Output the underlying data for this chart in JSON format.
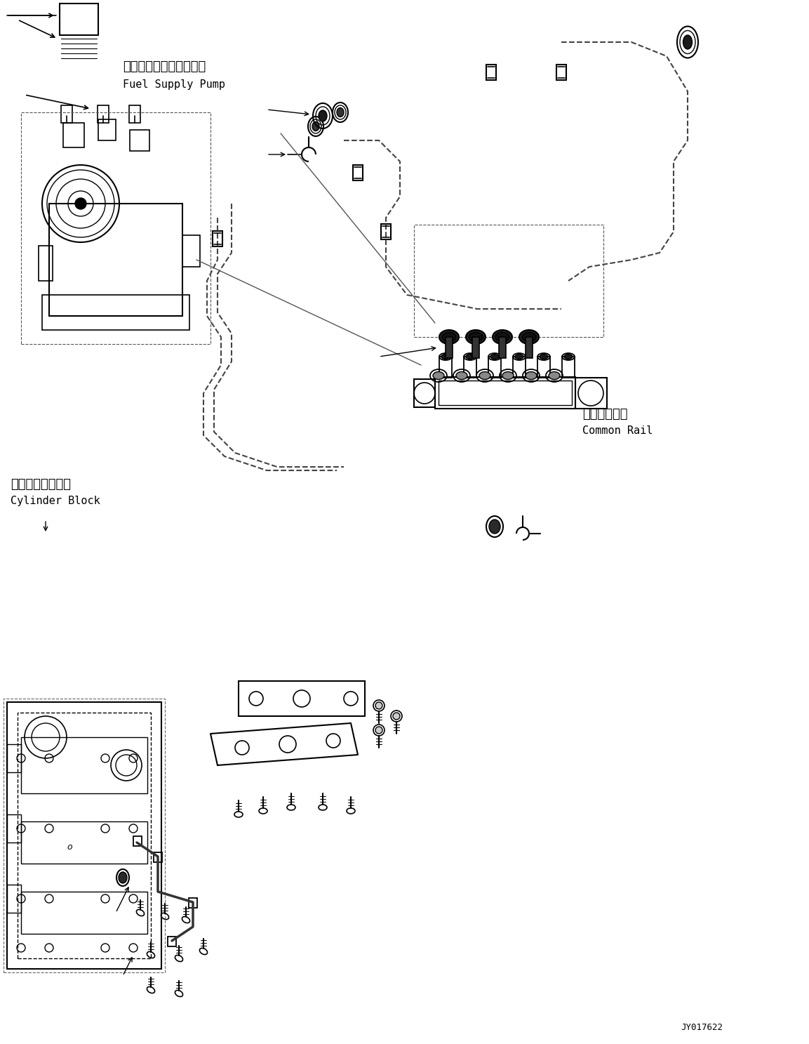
{
  "bg_color": "#ffffff",
  "line_color": "#000000",
  "fig_width": 11.53,
  "fig_height": 14.87,
  "dpi": 100,
  "watermark": "JY017622",
  "labels": {
    "fuel_pump_jp": "フェエルサプライボンプ",
    "fuel_pump_en": "Fuel Supply Pump",
    "cylinder_jp": "シリンダブロック",
    "cylinder_en": "Cylinder Block",
    "rail_jp": "コモンレール",
    "rail_en": "Common Rail"
  }
}
